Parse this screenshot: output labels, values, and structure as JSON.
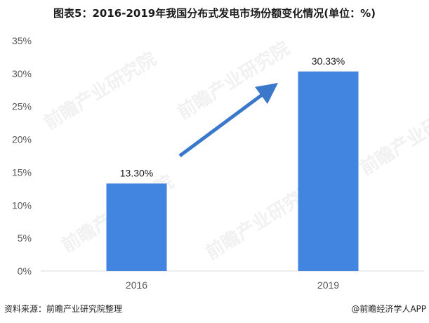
{
  "title": "图表5：2016-2019年我国分布式发电市场份额变化情况(单位：%)",
  "source": "资料来源：前瞻产业研究院整理",
  "credit": "@前瞻经济学人APP",
  "watermark": "前瞻产业研究院",
  "colors": {
    "bar": "#4185E0",
    "arrow": "#3A78CC",
    "axis": "#D9D9D9"
  },
  "chart_data": {
    "type": "bar",
    "categories": [
      "2016",
      "2019"
    ],
    "values": [
      13.3,
      30.33
    ],
    "data_labels": [
      "13.30%",
      "30.33%"
    ],
    "y_ticks": [
      "0%",
      "5%",
      "10%",
      "15%",
      "20%",
      "25%",
      "30%",
      "35%"
    ],
    "ylim": [
      0,
      35
    ],
    "grid": false,
    "annotation": "upward trend arrow"
  }
}
